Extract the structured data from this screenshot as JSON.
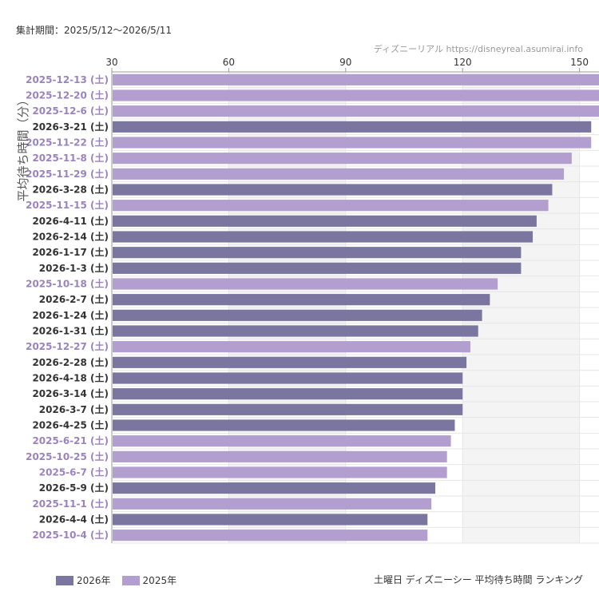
{
  "header": {
    "period": "集計期間：2025/5/12〜2026/5/11",
    "site": "ディズニーリアル  https://disneyreal.asumirai.info"
  },
  "footer": {
    "title": "土曜日 ディズニーシー 平均待ち時間 ランキング"
  },
  "colors": {
    "y2026": "#7b76a0",
    "y2025": "#b39fcf",
    "label2026": "#333333",
    "label2025": "#9b83c0",
    "grid": "#e6e6e6",
    "band": "#f4f4f4"
  },
  "chart_data": {
    "type": "bar",
    "orientation": "horizontal",
    "ylabel": "平均待ち時間（分）",
    "xlim": [
      30,
      155
    ],
    "ticks": [
      "30",
      "60",
      "90",
      "120",
      "150"
    ],
    "tick_values": [
      30,
      60,
      90,
      120,
      150
    ],
    "grid": true,
    "legend_position": "bottom-left",
    "legend": [
      {
        "name": "2026年",
        "key": "y2026"
      },
      {
        "name": "2025年",
        "key": "y2025"
      }
    ],
    "bars": [
      {
        "label": "2025-12-13 (土)",
        "value": 155,
        "year": "2025"
      },
      {
        "label": "2025-12-20 (土)",
        "value": 155,
        "year": "2025"
      },
      {
        "label": "2025-12-6 (土)",
        "value": 155,
        "year": "2025"
      },
      {
        "label": "2026-3-21 (土)",
        "value": 153,
        "year": "2026"
      },
      {
        "label": "2025-11-22 (土)",
        "value": 153,
        "year": "2025"
      },
      {
        "label": "2025-11-8 (土)",
        "value": 148,
        "year": "2025"
      },
      {
        "label": "2025-11-29 (土)",
        "value": 146,
        "year": "2025"
      },
      {
        "label": "2026-3-28 (土)",
        "value": 143,
        "year": "2026"
      },
      {
        "label": "2025-11-15 (土)",
        "value": 142,
        "year": "2025"
      },
      {
        "label": "2026-4-11 (土)",
        "value": 139,
        "year": "2026"
      },
      {
        "label": "2026-2-14 (土)",
        "value": 138,
        "year": "2026"
      },
      {
        "label": "2026-1-17 (土)",
        "value": 135,
        "year": "2026"
      },
      {
        "label": "2026-1-3 (土)",
        "value": 135,
        "year": "2026"
      },
      {
        "label": "2025-10-18 (土)",
        "value": 129,
        "year": "2025"
      },
      {
        "label": "2026-2-7 (土)",
        "value": 127,
        "year": "2026"
      },
      {
        "label": "2026-1-24 (土)",
        "value": 125,
        "year": "2026"
      },
      {
        "label": "2026-1-31 (土)",
        "value": 124,
        "year": "2026"
      },
      {
        "label": "2025-12-27 (土)",
        "value": 122,
        "year": "2025"
      },
      {
        "label": "2026-2-28 (土)",
        "value": 121,
        "year": "2026"
      },
      {
        "label": "2026-4-18 (土)",
        "value": 120,
        "year": "2026"
      },
      {
        "label": "2026-3-14 (土)",
        "value": 120,
        "year": "2026"
      },
      {
        "label": "2026-3-7 (土)",
        "value": 120,
        "year": "2026"
      },
      {
        "label": "2026-4-25 (土)",
        "value": 118,
        "year": "2026"
      },
      {
        "label": "2025-6-21 (土)",
        "value": 117,
        "year": "2025"
      },
      {
        "label": "2025-10-25 (土)",
        "value": 116,
        "year": "2025"
      },
      {
        "label": "2025-6-7 (土)",
        "value": 116,
        "year": "2025"
      },
      {
        "label": "2026-5-9 (土)",
        "value": 113,
        "year": "2026"
      },
      {
        "label": "2025-11-1 (土)",
        "value": 112,
        "year": "2025"
      },
      {
        "label": "2026-4-4 (土)",
        "value": 111,
        "year": "2026"
      },
      {
        "label": "2025-10-4 (土)",
        "value": 111,
        "year": "2025"
      }
    ]
  }
}
